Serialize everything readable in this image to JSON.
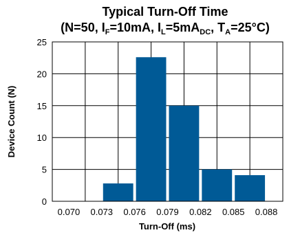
{
  "chart_data": {
    "type": "bar",
    "title_line1": "Typical Turn-Off Time",
    "title_line2": {
      "open": "(N=50, I",
      "sub_f": "F",
      "part2": "=10mA, I",
      "sub_l": "L",
      "part3": "=5mA",
      "sub_dc": "DC",
      "part4": ", T",
      "sub_a": "A",
      "part5": "=25°C)"
    },
    "xlabel": "Turn-Off (ms)",
    "ylabel": "Device Count (N)",
    "x_ticks": [
      "0.070",
      "0.073",
      "0.076",
      "0.079",
      "0.082",
      "0.085",
      "0.088"
    ],
    "y_ticks": [
      "0",
      "5",
      "10",
      "15",
      "20",
      "25"
    ],
    "ylim": [
      0,
      25
    ],
    "grid": true,
    "bar_color": "#005a96",
    "bars": [
      {
        "bin": [
          "0.073",
          "0.076"
        ],
        "value": 2.8
      },
      {
        "bin": [
          "0.076",
          "0.079"
        ],
        "value": 22.6
      },
      {
        "bin": [
          "0.079",
          "0.082"
        ],
        "value": 15
      },
      {
        "bin": [
          "0.082",
          "0.085"
        ],
        "value": 5
      },
      {
        "bin": [
          "0.085",
          "0.088"
        ],
        "value": 4.1
      }
    ]
  }
}
